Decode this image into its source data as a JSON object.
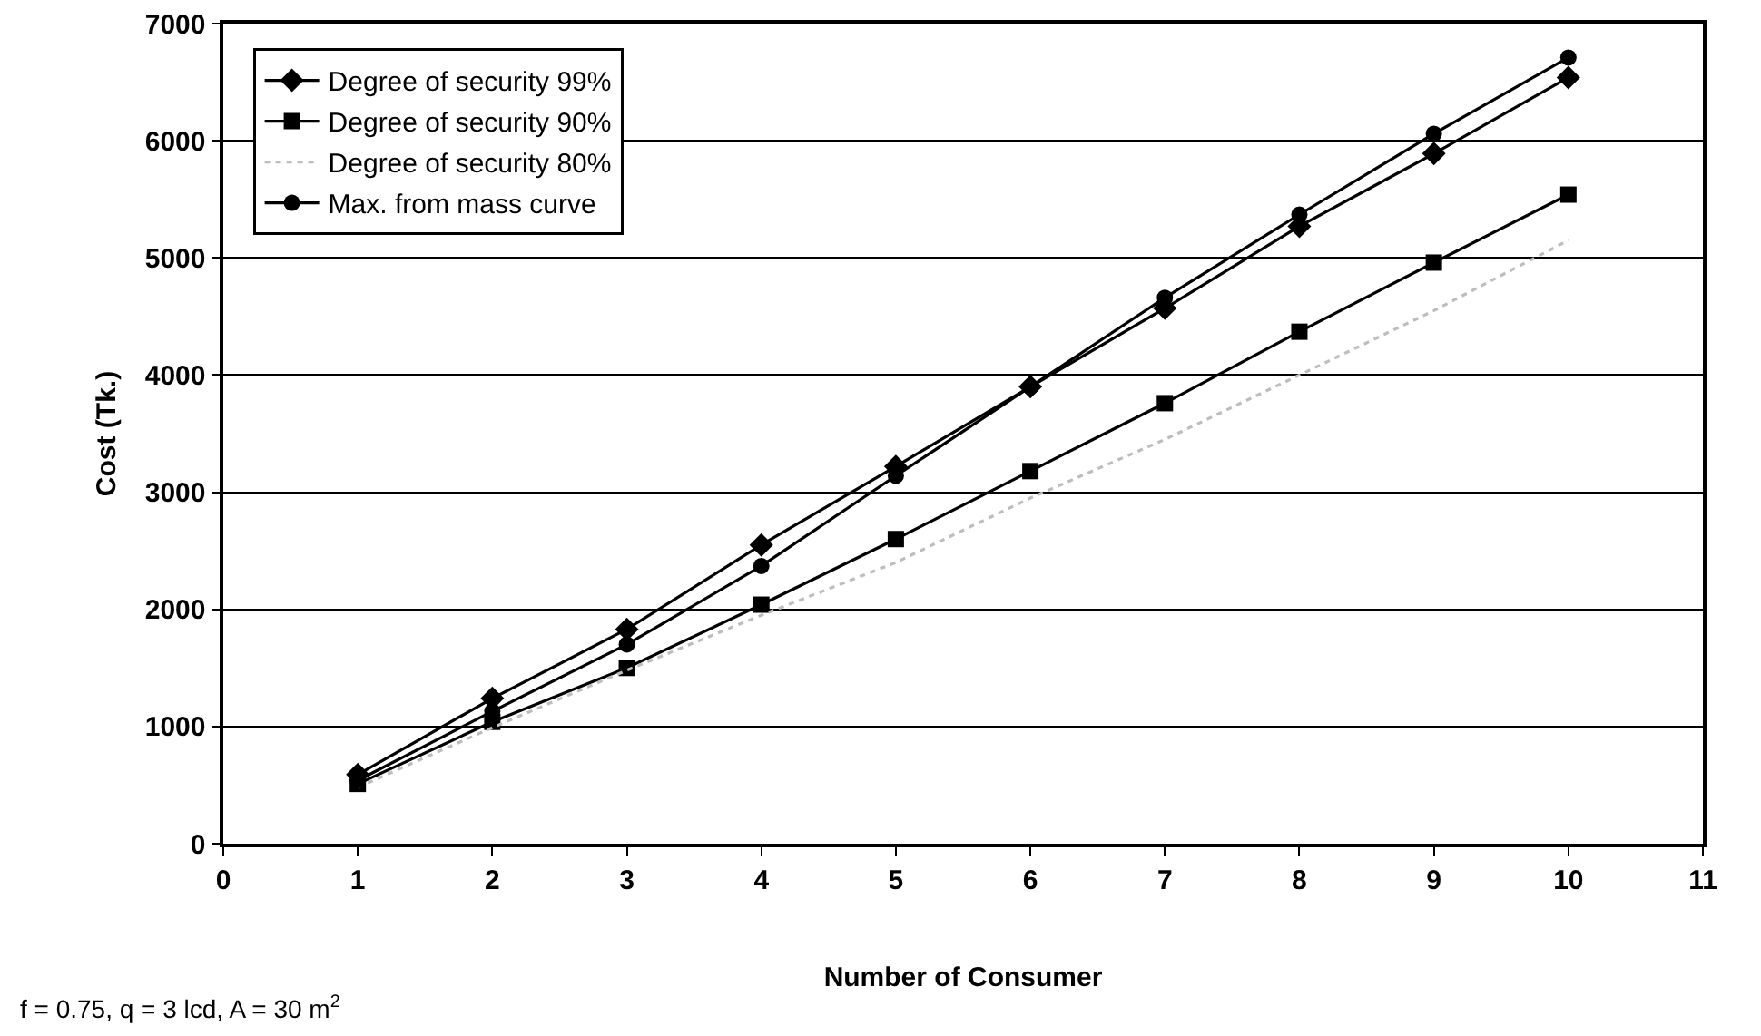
{
  "chart_data": {
    "type": "line",
    "xlabel": "Number of Consumer",
    "ylabel": "Cost (Tk.)",
    "x": [
      1,
      2,
      3,
      4,
      5,
      6,
      7,
      8,
      9,
      10
    ],
    "series": [
      {
        "name": "Degree of security 99%",
        "color": "#000000",
        "marker": "diamond",
        "values": [
          590,
          1240,
          1830,
          2550,
          3220,
          3900,
          4570,
          5270,
          5890,
          6540
        ]
      },
      {
        "name": "Degree of security 90%",
        "color": "#000000",
        "marker": "square",
        "values": [
          510,
          1040,
          1500,
          2040,
          2600,
          3180,
          3760,
          4370,
          4960,
          5540
        ]
      },
      {
        "name": "Degree of security 80%",
        "color": "#bdbdbd",
        "marker": "none",
        "line_style": "dotted",
        "values": [
          480,
          990,
          1480,
          1950,
          2400,
          2950,
          3450,
          4000,
          4550,
          5150
        ]
      },
      {
        "name": "Max. from mass curve",
        "color": "#000000",
        "marker": "circle",
        "values": [
          540,
          1130,
          1700,
          2370,
          3140,
          3900,
          4660,
          5370,
          6060,
          6710
        ]
      }
    ],
    "xlim": [
      0,
      11
    ],
    "xticks": [
      0,
      1,
      2,
      3,
      4,
      5,
      6,
      7,
      8,
      9,
      10,
      11
    ],
    "ylim": [
      0,
      7000
    ],
    "yticks": [
      0,
      1000,
      2000,
      3000,
      4000,
      5000,
      6000,
      7000
    ],
    "grid": "y",
    "legend": "top left",
    "annotations": [
      "f = 0.75, q = 3 lcd, A = 30 m$^{2}$"
    ]
  }
}
